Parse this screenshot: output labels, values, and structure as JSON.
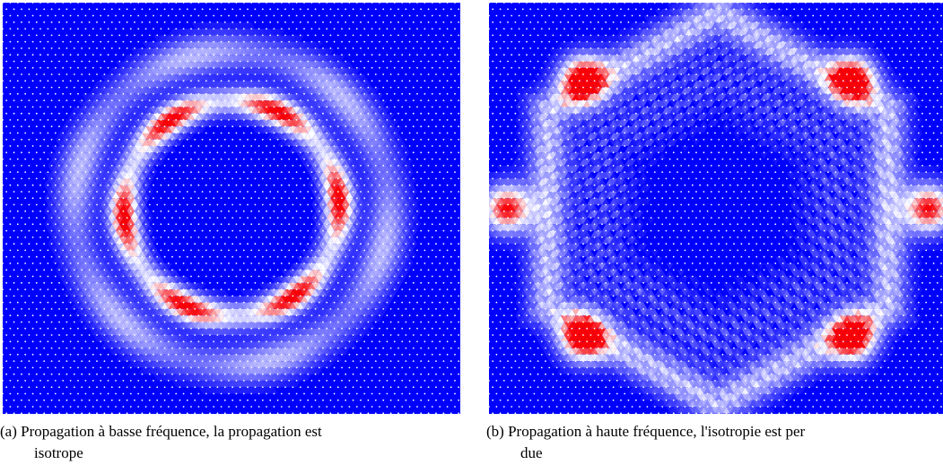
{
  "figures": [
    {
      "label": "(a)",
      "caption_line1": "Propagation à basse fréquence, la propagation est",
      "caption_line2": "isotrope",
      "pattern": "ring",
      "colors": {
        "background": "#0000ff",
        "mid": "#ffffff",
        "peak": "#ff0000"
      }
    },
    {
      "label": "(b)",
      "caption_line1": "Propagation à haute fréquence, l'isotropie est per",
      "caption_line2": "due",
      "pattern": "hexagonal-anisotropic",
      "colors": {
        "background": "#0000ff",
        "mid": "#ffffff",
        "peak": "#ff0000"
      }
    }
  ]
}
